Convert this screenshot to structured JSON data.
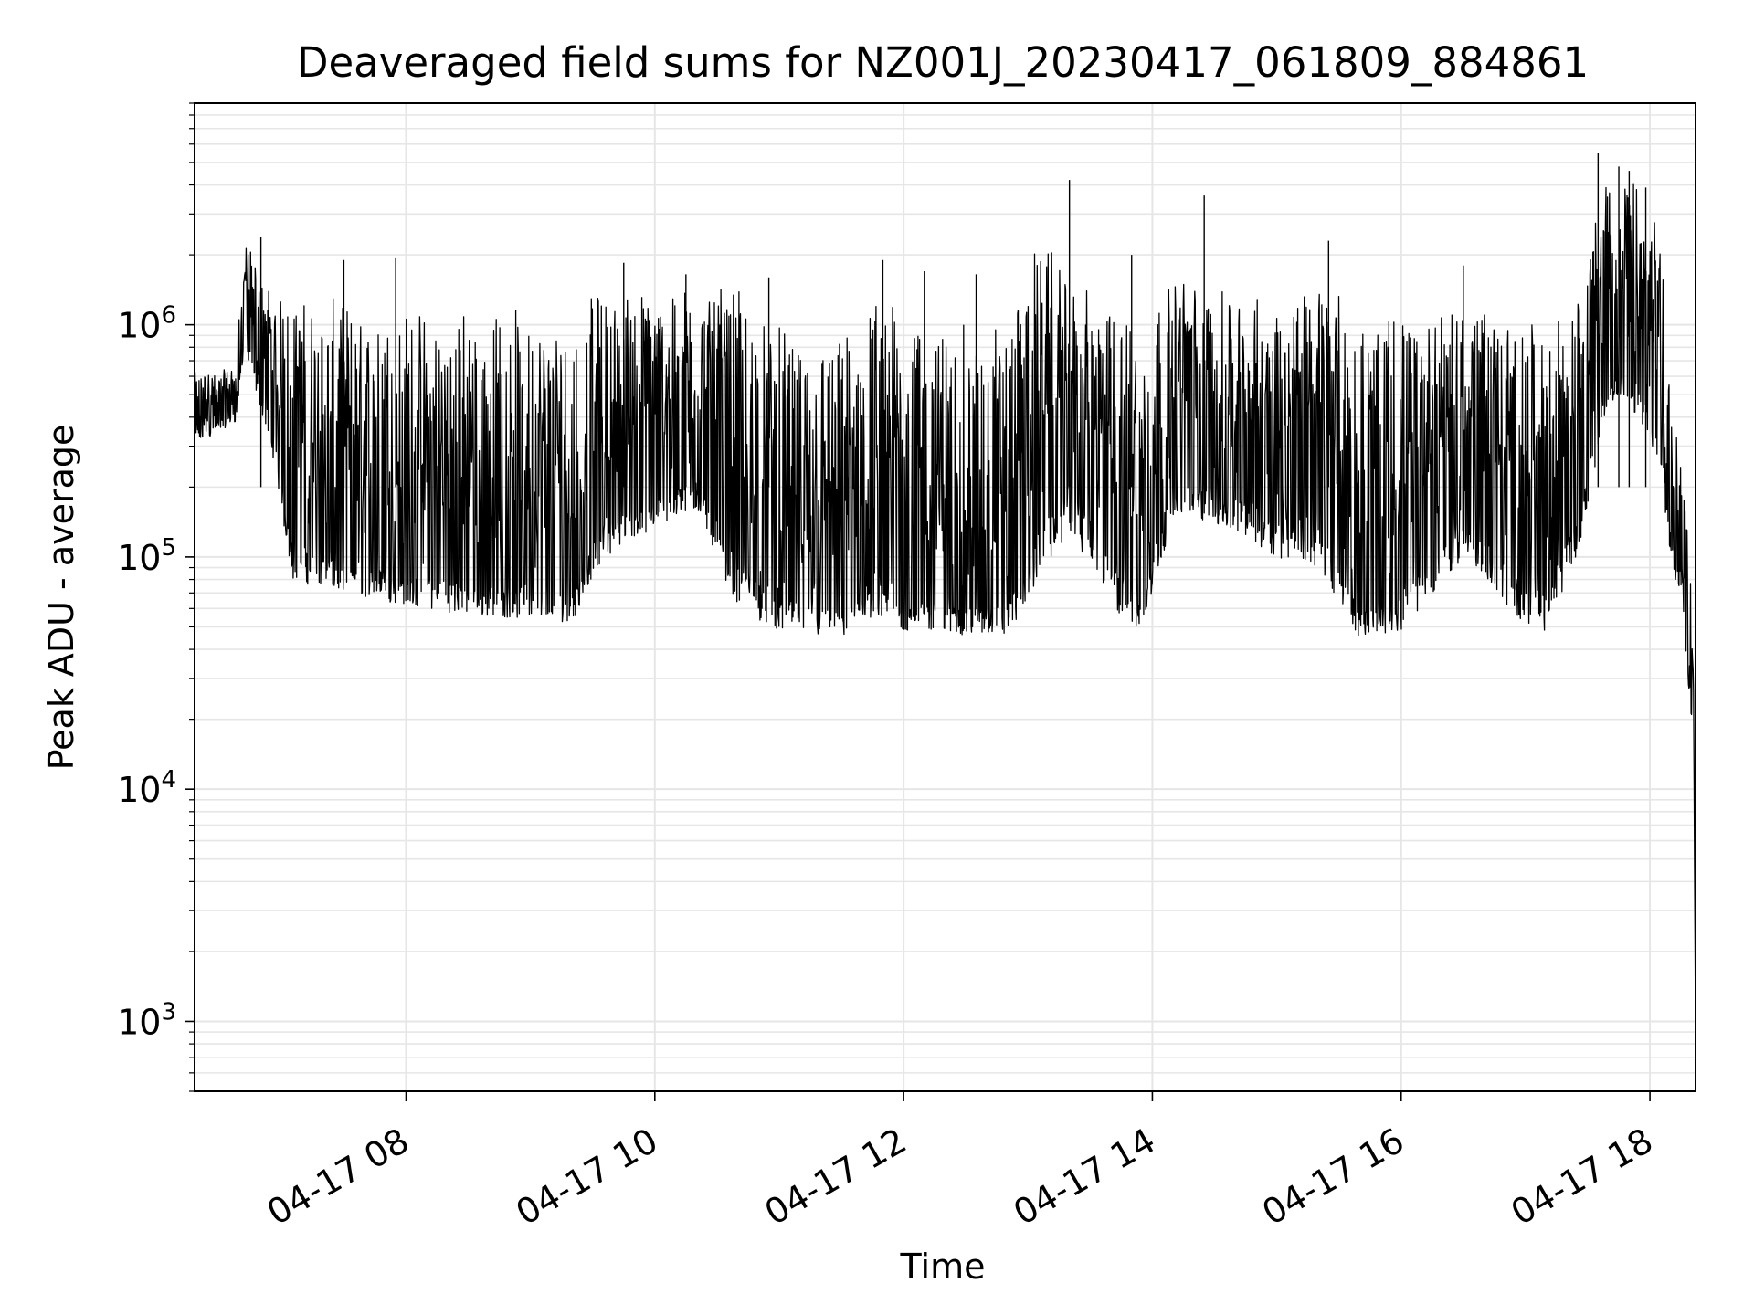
{
  "chart_data": {
    "type": "line",
    "title": "Deaveraged field sums for NZ001J_20230417_061809_884861",
    "xlabel": "Time",
    "ylabel": "Peak ADU - average",
    "yscale": "log",
    "xlim": [
      "2023-04-17T06:18",
      "2023-04-17T18:22"
    ],
    "ylim": [
      500,
      9000000
    ],
    "grid": true,
    "line_color": "#000000",
    "grid_color": "#e6e6e6",
    "x_ticks": [
      {
        "t": "2023-04-17T08:00",
        "label": "04-17 08"
      },
      {
        "t": "2023-04-17T10:00",
        "label": "04-17 10"
      },
      {
        "t": "2023-04-17T12:00",
        "label": "04-17 12"
      },
      {
        "t": "2023-04-17T14:00",
        "label": "04-17 14"
      },
      {
        "t": "2023-04-17T16:00",
        "label": "04-17 16"
      },
      {
        "t": "2023-04-17T18:00",
        "label": "04-17 18"
      }
    ],
    "y_ticks": [
      {
        "value": 1000,
        "base": "10",
        "exp": "3"
      },
      {
        "value": 10000,
        "base": "10",
        "exp": "4"
      },
      {
        "value": 100000,
        "base": "10",
        "exp": "5"
      },
      {
        "value": 1000000,
        "base": "10",
        "exp": "6"
      }
    ],
    "series": [
      {
        "style": "noisy",
        "x": [
          "2023-04-17T06:18",
          "2023-04-17T06:30",
          "2023-04-17T06:38",
          "2023-04-17T06:42",
          "2023-04-17T06:48",
          "2023-04-17T06:55",
          "2023-04-17T07:05",
          "2023-04-17T07:15",
          "2023-04-17T07:30",
          "2023-04-17T08:00",
          "2023-04-17T08:30",
          "2023-04-17T09:00",
          "2023-04-17T09:20",
          "2023-04-17T09:35",
          "2023-04-17T10:00",
          "2023-04-17T10:20",
          "2023-04-17T10:40",
          "2023-04-17T11:00",
          "2023-04-17T11:30",
          "2023-04-17T11:45",
          "2023-04-17T12:00",
          "2023-04-17T12:30",
          "2023-04-17T12:50",
          "2023-04-17T13:05",
          "2023-04-17T13:20",
          "2023-04-17T13:40",
          "2023-04-17T13:55",
          "2023-04-17T14:10",
          "2023-04-17T14:30",
          "2023-04-17T15:00",
          "2023-04-17T15:20",
          "2023-04-17T15:40",
          "2023-04-17T16:00",
          "2023-04-17T16:30",
          "2023-04-17T16:55",
          "2023-04-17T17:10",
          "2023-04-17T17:25",
          "2023-04-17T17:40",
          "2023-04-17T17:55",
          "2023-04-17T18:05",
          "2023-04-17T18:10",
          "2023-04-17T18:15",
          "2023-04-17T18:19",
          "2023-04-17T18:21",
          "2023-04-17T18:22"
        ],
        "y": [
          450000,
          480000,
          520000,
          1400000,
          800000,
          600000,
          250000,
          200000,
          180000,
          150000,
          140000,
          130000,
          120000,
          260000,
          320000,
          400000,
          220000,
          120000,
          100000,
          120000,
          110000,
          100000,
          110000,
          300000,
          500000,
          250000,
          100000,
          450000,
          400000,
          350000,
          380000,
          100000,
          130000,
          350000,
          180000,
          150000,
          350000,
          1300000,
          1000000,
          700000,
          200000,
          90000,
          70000,
          30000,
          800
        ],
        "low": [
          300000,
          350000,
          380000,
          800000,
          500000,
          300000,
          80000,
          75000,
          70000,
          62000,
          56000,
          54000,
          52000,
          100000,
          130000,
          160000,
          60000,
          48000,
          44000,
          55000,
          48000,
          46000,
          45000,
          80000,
          130000,
          60000,
          46000,
          150000,
          140000,
          100000,
          90000,
          45000,
          48000,
          100000,
          55000,
          48000,
          100000,
          450000,
          400000,
          250000,
          90000,
          70000,
          25000,
          16000,
          800
        ],
        "high": [
          650000,
          620000,
          700000,
          2400000,
          1800000,
          1500000,
          1400000,
          1300000,
          1300000,
          1200000,
          1300000,
          1200000,
          1100000,
          1500000,
          1500000,
          1500000,
          1400000,
          1000000,
          900000,
          1500000,
          1200000,
          1000000,
          1100000,
          2500000,
          1600000,
          1200000,
          1100000,
          1800000,
          1400000,
          1300000,
          1700000,
          1100000,
          1200000,
          1300000,
          1100000,
          1000000,
          1300000,
          5000000,
          4000000,
          2500000,
          700000,
          300000,
          100000,
          55000,
          800
        ]
      }
    ],
    "spikes": [
      {
        "t": "2023-04-17T06:50",
        "value": 2400000
      },
      {
        "t": "2023-04-17T07:30",
        "value": 1900000
      },
      {
        "t": "2023-04-17T07:55",
        "value": 1950000
      },
      {
        "t": "2023-04-17T09:45",
        "value": 1850000
      },
      {
        "t": "2023-04-17T10:15",
        "value": 1650000
      },
      {
        "t": "2023-04-17T10:55",
        "value": 1600000
      },
      {
        "t": "2023-04-17T11:50",
        "value": 1900000
      },
      {
        "t": "2023-04-17T12:10",
        "value": 1700000
      },
      {
        "t": "2023-04-17T12:35",
        "value": 1650000
      },
      {
        "t": "2023-04-17T13:20",
        "value": 4200000
      },
      {
        "t": "2023-04-17T13:50",
        "value": 2000000
      },
      {
        "t": "2023-04-17T14:25",
        "value": 3600000
      },
      {
        "t": "2023-04-17T15:25",
        "value": 2300000
      },
      {
        "t": "2023-04-17T16:30",
        "value": 1800000
      },
      {
        "t": "2023-04-17T17:35",
        "value": 5500000
      },
      {
        "t": "2023-04-17T17:45",
        "value": 4800000
      },
      {
        "t": "2023-04-17T17:50",
        "value": 4600000
      },
      {
        "t": "2023-04-17T17:58",
        "value": 3900000
      }
    ]
  }
}
